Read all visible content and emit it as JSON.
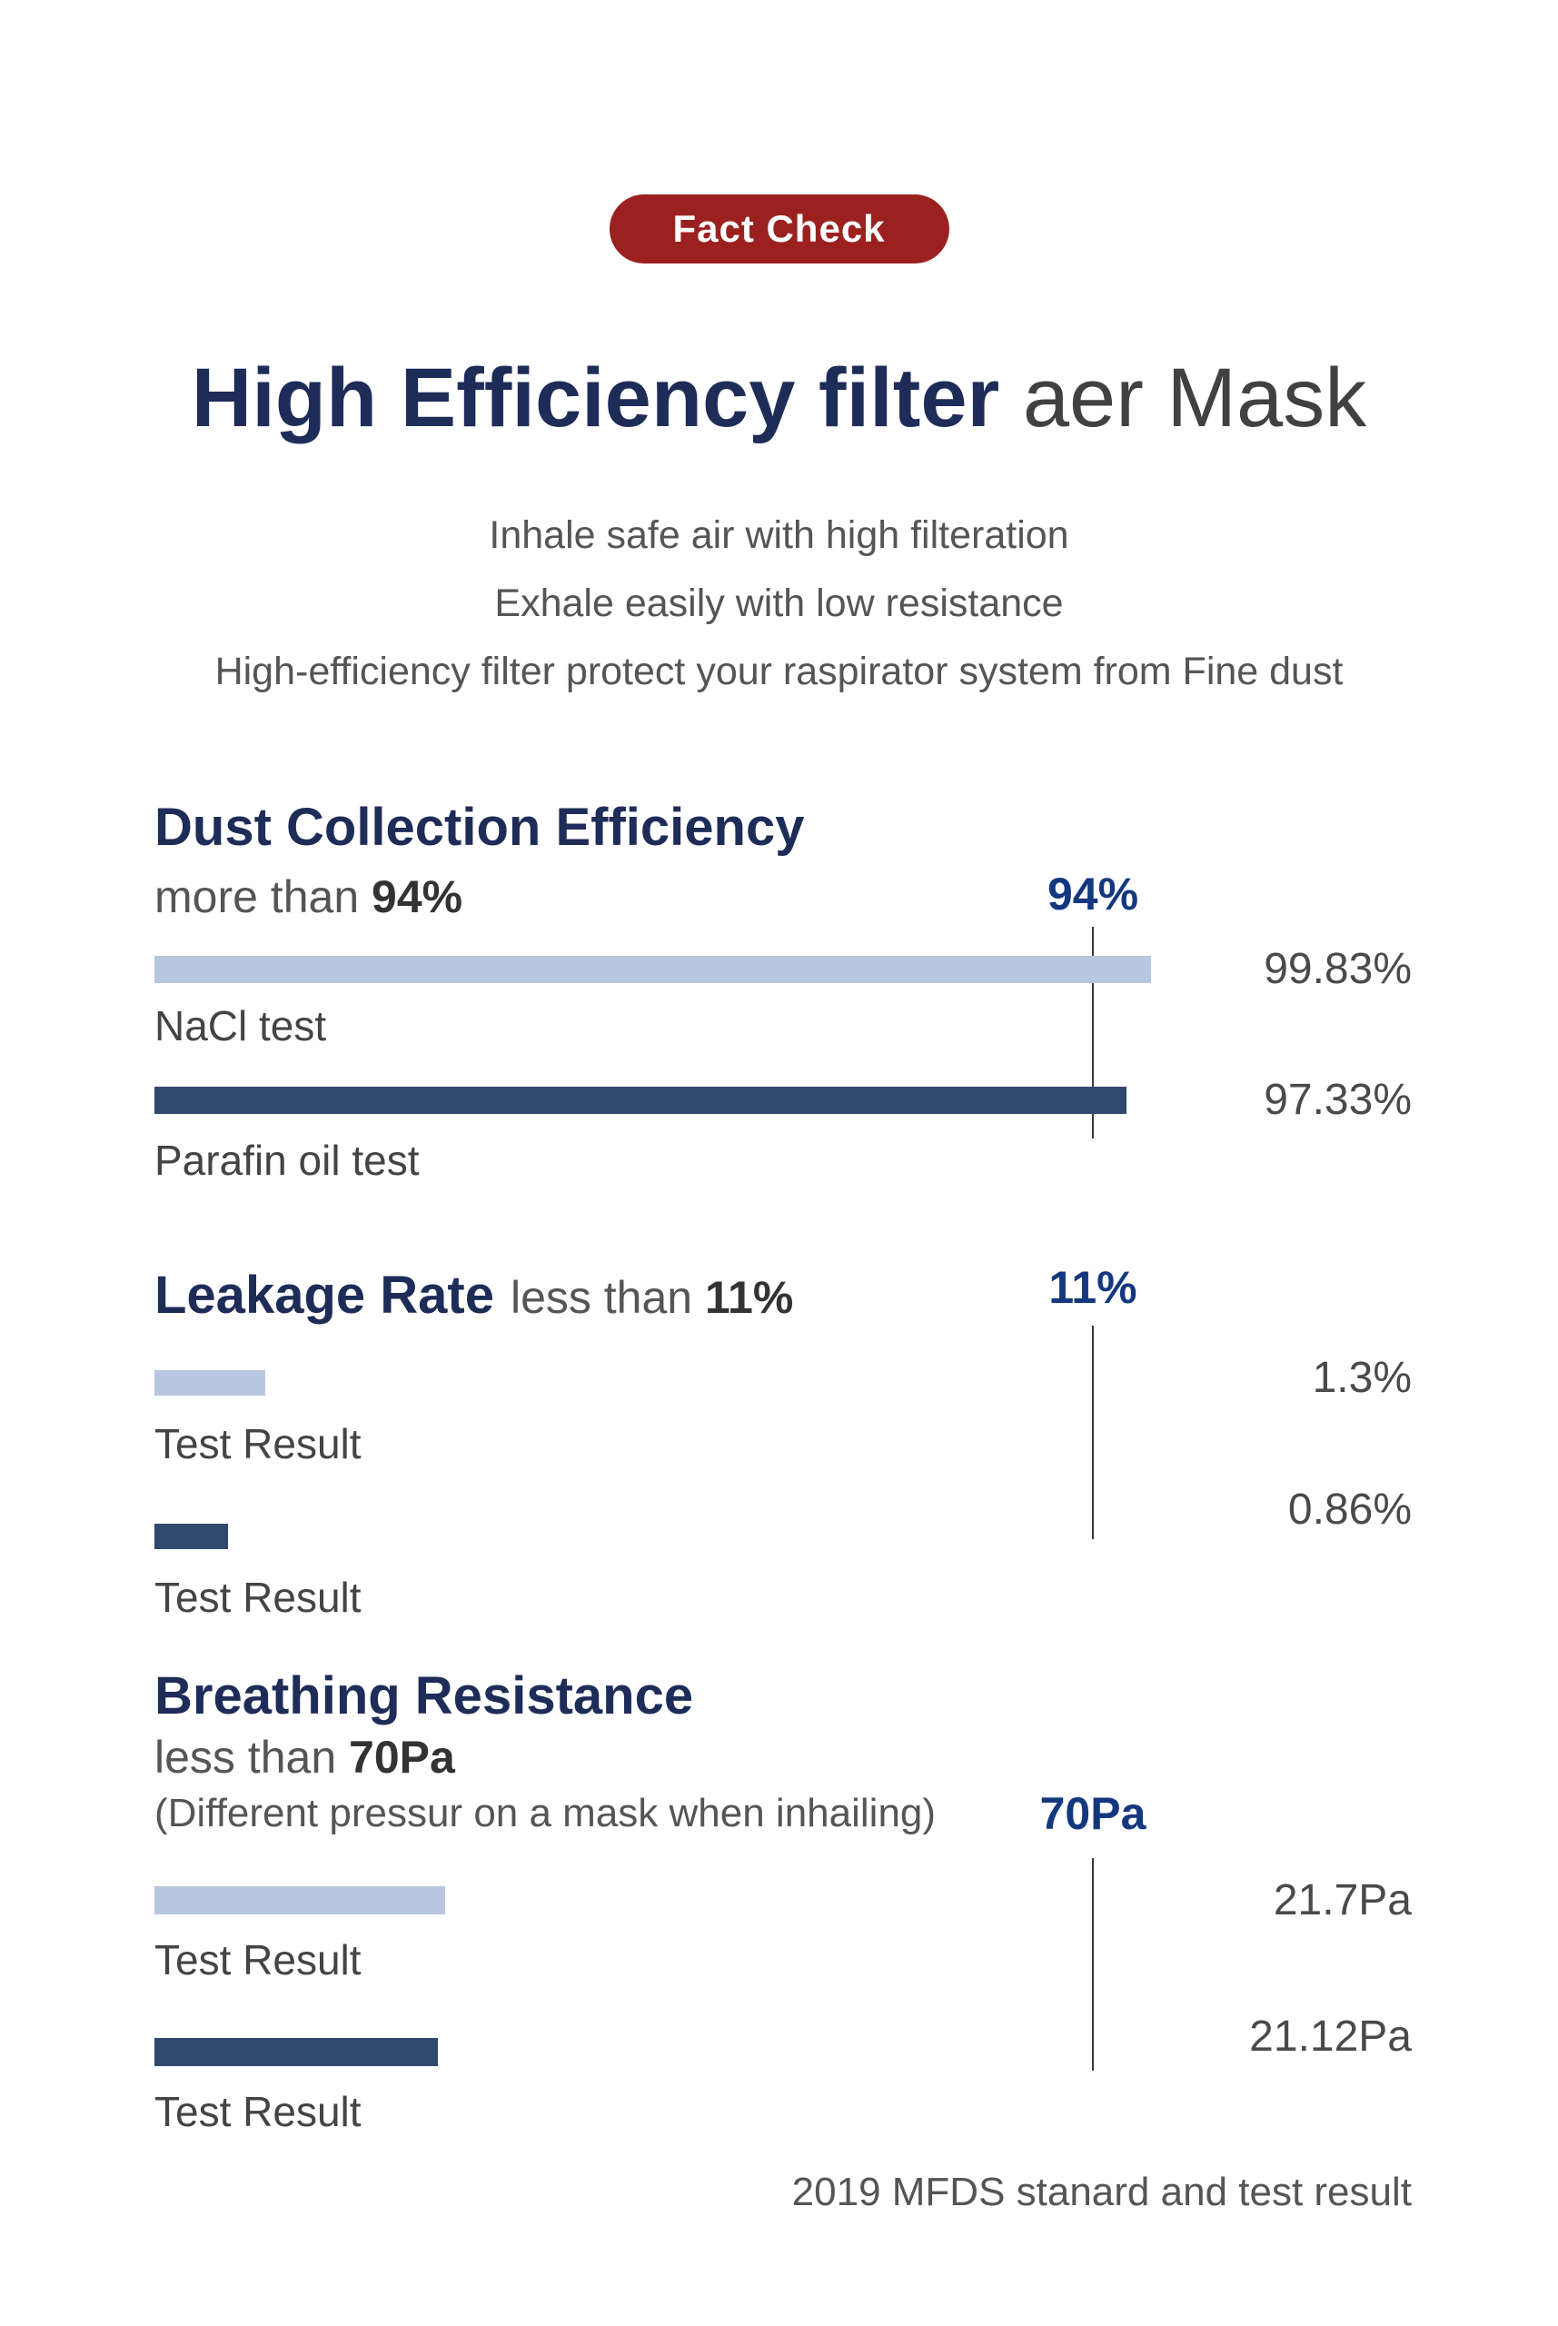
{
  "badge": {
    "label": "Fact Check"
  },
  "title": {
    "bold": "High Efficiency filter",
    "light": " aer Mask"
  },
  "subtitle_lines": [
    "Inhale safe air with high filteration",
    "Exhale easily with low resistance",
    "High-efficiency filter protect your raspirator system from Fine dust"
  ],
  "colors": {
    "badge_bg": "#9b2121",
    "heading_navy": "#1e2c58",
    "marker_navy": "#14387f",
    "light_bar": "#b9c6e0",
    "dark_bar": "#31486e",
    "title_gray": "#414141"
  },
  "sections": [
    {
      "heading": "Dust Collection Efficiency",
      "condition": {
        "prefix": "more than ",
        "value": "94%"
      },
      "marker": "94%",
      "threshold": 94,
      "bars": [
        {
          "label": "NaCl test",
          "value": 99.83,
          "value_label": "99.83%",
          "shade": "light"
        },
        {
          "label": "Parafin oil test",
          "value": 97.33,
          "value_label": "97.33%",
          "shade": "dark"
        }
      ]
    },
    {
      "heading": "Leakage Rate",
      "condition": {
        "prefix": "less than ",
        "value": "11%"
      },
      "marker": "11%",
      "threshold": 11,
      "bars": [
        {
          "label": "Test Result",
          "value": 1.3,
          "value_label": "1.3%",
          "shade": "light"
        },
        {
          "label": "Test Result",
          "value": 0.86,
          "value_label": "0.86%",
          "shade": "dark"
        }
      ]
    },
    {
      "heading": "Breathing Resistance",
      "condition": {
        "prefix": "less than ",
        "value": "70Pa"
      },
      "note": "(Different pressur on a mask when inhailing)",
      "marker": "70Pa",
      "threshold": 70,
      "bars": [
        {
          "label": "Test Result",
          "value": 21.7,
          "value_label": "21.7Pa",
          "shade": "light"
        },
        {
          "label": "Test Result",
          "value": 21.12,
          "value_label": "21.12Pa",
          "shade": "dark"
        }
      ]
    }
  ],
  "footer": "2019 MFDS stanard and test result",
  "chart_data": [
    {
      "type": "bar",
      "orientation": "horizontal",
      "title": "Dust Collection Efficiency",
      "subtitle": "more than 94%",
      "categories": [
        "NaCl test",
        "Parafin oil test"
      ],
      "values": [
        99.83,
        97.33
      ],
      "value_labels": [
        "99.83%",
        "97.33%"
      ],
      "unit": "%",
      "threshold_marker": {
        "label": "94%",
        "value": 94
      },
      "bar_colors": [
        "#b9c6e0",
        "#31486e"
      ],
      "grid": false,
      "legend": false
    },
    {
      "type": "bar",
      "orientation": "horizontal",
      "title": "Leakage Rate",
      "subtitle": "less than 11%",
      "categories": [
        "Test Result",
        "Test Result"
      ],
      "values": [
        1.3,
        0.86
      ],
      "value_labels": [
        "1.3%",
        "0.86%"
      ],
      "unit": "%",
      "threshold_marker": {
        "label": "11%",
        "value": 11
      },
      "bar_colors": [
        "#b9c6e0",
        "#31486e"
      ],
      "grid": false,
      "legend": false
    },
    {
      "type": "bar",
      "orientation": "horizontal",
      "title": "Breathing Resistance",
      "subtitle": "less than 70Pa",
      "annotation": "(Different pressur on a mask when inhailing)",
      "categories": [
        "Test Result",
        "Test Result"
      ],
      "values": [
        21.7,
        21.12
      ],
      "value_labels": [
        "21.7Pa",
        "21.12Pa"
      ],
      "unit": "Pa",
      "threshold_marker": {
        "label": "70Pa",
        "value": 70
      },
      "bar_colors": [
        "#b9c6e0",
        "#31486e"
      ],
      "grid": false,
      "legend": false
    }
  ]
}
